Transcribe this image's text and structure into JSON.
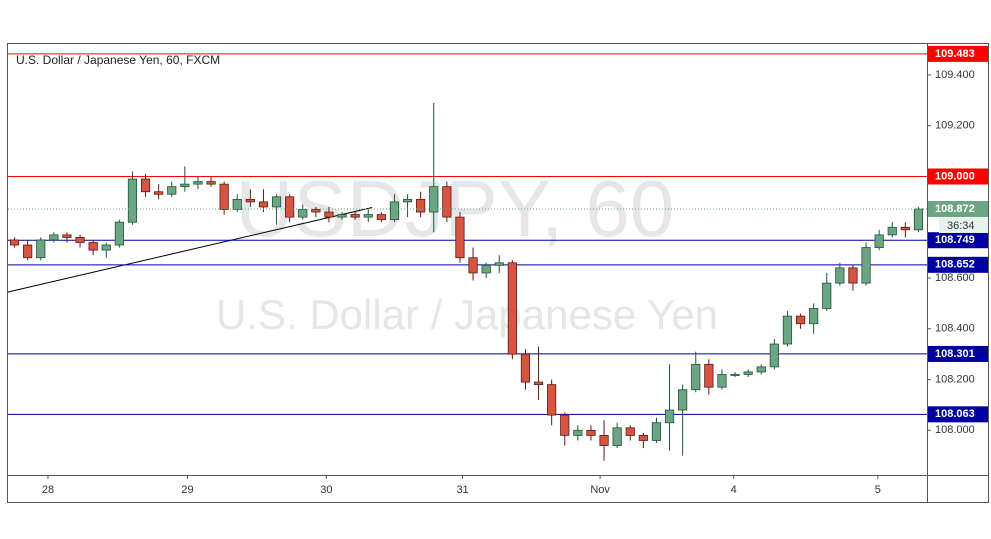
{
  "chart_data": {
    "type": "candlestick",
    "title": "U.S. Dollar / Japanese Yen, 60, FXCM",
    "watermark": "USDJPY, 60",
    "watermark_subtitle": "U.S. Dollar / Japanese Yen",
    "up_color": "#6ba583",
    "down_color": "#d75442",
    "up_border": "#225437",
    "down_border": "#5b1a13",
    "xlim": [
      -0.5,
      69.5
    ],
    "xticks": [
      {
        "value": 2.55,
        "label": "28"
      },
      {
        "value": 13.2,
        "label": "29"
      },
      {
        "value": 23.8,
        "label": "30"
      },
      {
        "value": 34.2,
        "label": "31"
      },
      {
        "value": 44.7,
        "label": "Nov"
      },
      {
        "value": 54.9,
        "label": "4"
      },
      {
        "value": 65.9,
        "label": "5"
      }
    ],
    "ylim": [
      107.824,
      109.522
    ],
    "yticks": [
      {
        "value": 108,
        "label": "108.000"
      },
      {
        "value": 108.2,
        "label": "108.200"
      },
      {
        "value": 108.4,
        "label": "108.400"
      },
      {
        "value": 108.6,
        "label": "108.600"
      },
      {
        "value": 109.2,
        "label": "109.200"
      },
      {
        "value": 109.4,
        "label": "109.400"
      }
    ],
    "grid": false,
    "open": [
      108.75,
      108.73,
      108.68,
      108.75,
      108.77,
      108.76,
      108.74,
      108.71,
      108.73,
      108.82,
      108.99,
      108.94,
      108.93,
      108.96,
      108.97,
      108.98,
      108.97,
      108.87,
      108.91,
      108.9,
      108.88,
      108.92,
      108.84,
      108.87,
      108.86,
      108.84,
      108.85,
      108.84,
      108.85,
      108.83,
      108.9,
      108.91,
      108.86,
      108.96,
      108.84,
      108.68,
      108.62,
      108.65,
      108.66,
      108.3,
      108.19,
      108.18,
      108.06,
      107.98,
      108.0,
      107.98,
      107.94,
      108.01,
      107.98,
      107.96,
      108.03,
      108.08,
      108.16,
      108.26,
      108.17,
      108.22,
      108.22,
      108.23,
      108.25,
      108.34,
      108.45,
      108.42,
      108.48,
      108.58,
      108.64,
      108.58,
      108.72,
      108.77,
      108.8,
      108.79
    ],
    "high": [
      108.76,
      108.75,
      108.76,
      108.78,
      108.78,
      108.77,
      108.75,
      108.74,
      108.83,
      109.02,
      109.01,
      108.97,
      108.98,
      109.04,
      109.0,
      109.0,
      108.98,
      108.93,
      108.95,
      108.95,
      108.93,
      108.93,
      108.89,
      108.88,
      108.88,
      108.86,
      108.86,
      108.87,
      108.86,
      108.93,
      108.93,
      108.94,
      109.29,
      108.98,
      108.86,
      108.72,
      108.66,
      108.69,
      108.67,
      108.32,
      108.33,
      108.2,
      108.07,
      108.02,
      108.02,
      108.04,
      108.03,
      108.02,
      107.99,
      108.05,
      108.26,
      108.18,
      108.31,
      108.28,
      108.24,
      108.23,
      108.24,
      108.26,
      108.36,
      108.47,
      108.46,
      108.5,
      108.62,
      108.66,
      108.65,
      108.74,
      108.79,
      108.82,
      108.82,
      108.88
    ],
    "low": [
      108.72,
      108.67,
      108.67,
      108.74,
      108.74,
      108.72,
      108.69,
      108.68,
      108.72,
      108.81,
      108.92,
      108.91,
      108.92,
      108.94,
      108.95,
      108.96,
      108.85,
      108.86,
      108.88,
      108.86,
      108.81,
      108.82,
      108.83,
      108.84,
      108.82,
      108.83,
      108.83,
      108.82,
      108.82,
      108.82,
      108.84,
      108.84,
      108.78,
      108.82,
      108.66,
      108.59,
      108.6,
      108.62,
      108.28,
      108.16,
      108.12,
      108.02,
      107.94,
      107.96,
      107.96,
      107.88,
      107.93,
      107.96,
      107.93,
      107.95,
      107.92,
      107.9,
      108.15,
      108.14,
      108.16,
      108.21,
      108.21,
      108.22,
      108.24,
      108.33,
      108.4,
      108.38,
      108.47,
      108.57,
      108.55,
      108.57,
      108.71,
      108.76,
      108.76,
      108.78
    ],
    "close": [
      108.73,
      108.68,
      108.75,
      108.77,
      108.76,
      108.74,
      108.71,
      108.73,
      108.82,
      108.99,
      108.94,
      108.93,
      108.96,
      108.97,
      108.98,
      108.97,
      108.87,
      108.91,
      108.9,
      108.88,
      108.92,
      108.84,
      108.87,
      108.86,
      108.84,
      108.85,
      108.84,
      108.85,
      108.83,
      108.9,
      108.91,
      108.86,
      108.96,
      108.84,
      108.68,
      108.62,
      108.65,
      108.66,
      108.3,
      108.19,
      108.18,
      108.06,
      107.98,
      108.0,
      107.98,
      107.94,
      108.01,
      107.98,
      107.96,
      108.03,
      108.08,
      108.16,
      108.26,
      108.17,
      108.22,
      108.22,
      108.23,
      108.25,
      108.34,
      108.45,
      108.42,
      108.48,
      108.58,
      108.64,
      108.58,
      108.72,
      108.77,
      108.8,
      108.79,
      108.872
    ],
    "levels": [
      {
        "value": 109.483,
        "color": "#ff0000"
      },
      {
        "value": 109,
        "label": "109.000",
        "color": "#ff0000"
      },
      {
        "value": 108.749,
        "color": "#0000a0"
      },
      {
        "value": 108.652,
        "color": "#0000a0"
      },
      {
        "value": 108.301,
        "color": "#0000a0"
      },
      {
        "value": 108.063,
        "color": "#0000a0"
      }
    ],
    "current_price": 108.872,
    "countdown": "36:34",
    "trendline": {
      "x": [
        -0.5,
        27.3
      ],
      "y": [
        108.545,
        108.878
      ]
    }
  }
}
